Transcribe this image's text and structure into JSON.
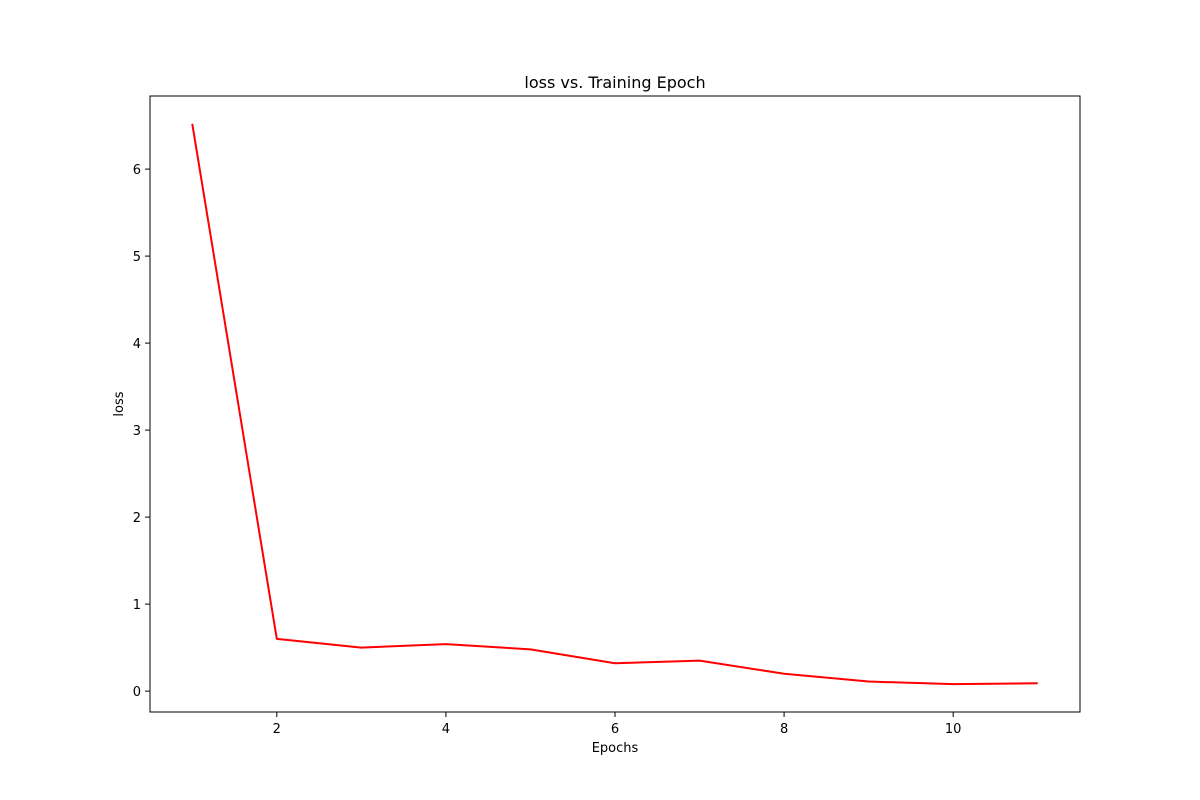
{
  "chart_data": {
    "type": "line",
    "title": "loss vs. Training Epoch",
    "xlabel": "Epochs",
    "ylabel": "loss",
    "xlim": [
      0.5,
      11.5
    ],
    "ylim": [
      -0.24,
      6.84
    ],
    "xticks": [
      2,
      4,
      6,
      8,
      10
    ],
    "yticks": [
      0,
      1,
      2,
      3,
      4,
      5,
      6
    ],
    "grid": false,
    "series": [
      {
        "color": "#ff0000",
        "x": [
          1,
          2,
          3,
          4,
          5,
          6,
          7,
          8,
          9,
          10,
          11
        ],
        "y": [
          6.52,
          0.6,
          0.5,
          0.54,
          0.48,
          0.32,
          0.35,
          0.2,
          0.11,
          0.08,
          0.09
        ]
      }
    ]
  }
}
